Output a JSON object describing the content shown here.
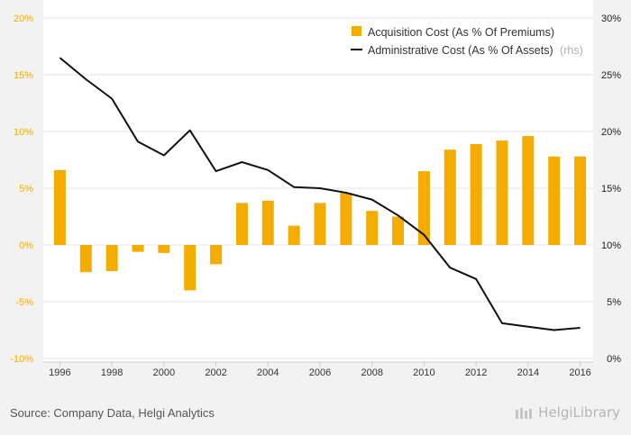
{
  "chart_data": {
    "type": "bar+line",
    "categories": [
      "1996",
      "1997",
      "1998",
      "1999",
      "2000",
      "2001",
      "2002",
      "2003",
      "2004",
      "2005",
      "2006",
      "2007",
      "2008",
      "2009",
      "2010",
      "2011",
      "2012",
      "2013",
      "2014",
      "2015",
      "2016"
    ],
    "x_tick_labels": [
      "1996",
      "1998",
      "2000",
      "2002",
      "2004",
      "2006",
      "2008",
      "2010",
      "2012",
      "2014",
      "2016"
    ],
    "series": [
      {
        "name": "Acquisition Cost (As % Of Premiums)",
        "type": "bar",
        "axis": "left",
        "color": "#f5ac00",
        "values": [
          6.6,
          -2.4,
          -2.3,
          -0.6,
          -0.7,
          -4.0,
          -1.7,
          3.7,
          3.9,
          1.7,
          3.7,
          4.6,
          3.0,
          2.5,
          6.5,
          8.4,
          8.9,
          9.2,
          9.6,
          7.8,
          7.8
        ]
      },
      {
        "name": "Administrative Cost (As % Of Assets)",
        "name_suffix": "(rhs)",
        "type": "line",
        "axis": "right",
        "color": "#111111",
        "values": [
          26.5,
          24.6,
          22.9,
          19.1,
          17.9,
          20.1,
          16.5,
          17.3,
          16.6,
          15.1,
          15.0,
          14.6,
          14.0,
          12.6,
          10.9,
          8.0,
          7.0,
          3.1,
          2.8,
          2.5,
          2.7
        ]
      }
    ],
    "y_left": {
      "min": -10,
      "max": 20,
      "ticks": [
        "-10%",
        "-5%",
        "0%",
        "5%",
        "10%",
        "15%",
        "20%"
      ],
      "tick_values": [
        -10,
        -5,
        0,
        5,
        10,
        15,
        20
      ],
      "color": "#f5ac00"
    },
    "y_right": {
      "min": 0,
      "max": 30,
      "ticks": [
        "0%",
        "5%",
        "10%",
        "15%",
        "20%",
        "25%",
        "30%"
      ],
      "tick_values": [
        0,
        5,
        10,
        15,
        20,
        25,
        30
      ]
    },
    "legend_position": "top-right",
    "grid": true
  },
  "footer": {
    "source": "Source: Company Data, Helgi Analytics",
    "brand": "HelgiLibrary"
  }
}
